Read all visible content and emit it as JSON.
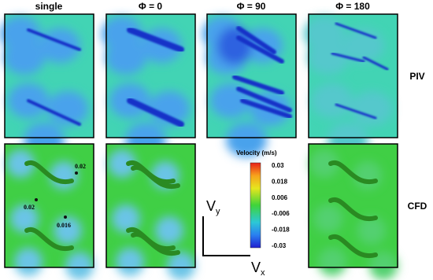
{
  "columns": [
    "single",
    "Φ = 0",
    "Φ = 90",
    "Φ = 180"
  ],
  "rows": [
    "PIV",
    "CFD"
  ],
  "colorbar": {
    "title": "Velocity (m/s)",
    "ticks": [
      "0.03",
      "0.018",
      "0.006",
      "-0.006",
      "-0.018",
      "-0.03"
    ]
  },
  "point_labels": [
    "0.02",
    "0.02",
    "0.016"
  ],
  "axes": {
    "y": {
      "symbol": "V",
      "subscript": "y"
    },
    "x": {
      "symbol": "V",
      "subscript": "x"
    }
  }
}
